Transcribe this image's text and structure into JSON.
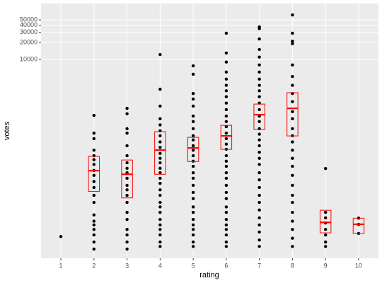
{
  "chart_data": {
    "type": "box",
    "x_label": "rating",
    "y_label": "votes",
    "categories": [
      "1",
      "2",
      "3",
      "4",
      "5",
      "6",
      "7",
      "8",
      "9",
      "10"
    ],
    "ylim": [
      3.1,
      97000
    ],
    "log_y": true,
    "grid": true,
    "yticks": [
      10000,
      20000,
      30000,
      40000,
      50000
    ],
    "box_color": "#ff0000",
    "point_color": "#000000",
    "boxes": {
      "q1": [
        null,
        47,
        36,
        94,
        158,
        259,
        578,
        447,
        8.7,
        8.5
      ],
      "median": [
        null,
        109,
        94,
        251,
        274,
        447,
        1060,
        1370,
        13.3,
        12.3
      ],
      "q3": [
        null,
        195,
        168,
        531,
        422,
        688,
        1630,
        2590,
        21.8,
        15.8
      ]
    },
    "points": [
      [
        7.5
      ],
      [
        1030,
        500,
        400,
        250,
        200,
        170,
        140,
        110,
        90,
        70,
        55,
        40,
        30,
        18,
        14,
        12,
        10,
        8,
        6,
        4.5
      ],
      [
        1370,
        1100,
        600,
        500,
        300,
        200,
        150,
        120,
        100,
        80,
        60,
        50,
        40,
        30,
        20,
        15,
        10,
        8,
        6,
        4.5
      ],
      [
        12200,
        2980,
        1500,
        900,
        700,
        550,
        450,
        350,
        280,
        220,
        180,
        150,
        120,
        100,
        80,
        65,
        50,
        40,
        30,
        25,
        20,
        15,
        12,
        10,
        8,
        6,
        5
      ],
      [
        7700,
        5480,
        2500,
        2000,
        1500,
        1000,
        800,
        600,
        450,
        380,
        300,
        250,
        200,
        160,
        130,
        100,
        80,
        60,
        45,
        35,
        25,
        20,
        15,
        12,
        10,
        8,
        6,
        5
      ],
      [
        29000,
        13000,
        9000,
        6000,
        4500,
        3500,
        2800,
        2200,
        1700,
        1300,
        1000,
        800,
        650,
        500,
        400,
        320,
        260,
        200,
        160,
        130,
        100,
        80,
        60,
        45,
        35,
        25,
        20,
        15,
        12,
        10,
        8,
        6,
        5
      ],
      [
        37500,
        35000,
        23000,
        15000,
        11000,
        8000,
        6000,
        4500,
        3500,
        2800,
        2200,
        1700,
        1300,
        1000,
        800,
        600,
        480,
        380,
        300,
        230,
        180,
        140,
        100,
        75,
        55,
        40,
        30,
        22,
        16,
        12,
        9,
        6.5,
        5
      ],
      [
        61000,
        29000,
        21000,
        19000,
        8000,
        5000,
        3500,
        2500,
        1800,
        1200,
        900,
        600,
        450,
        350,
        250,
        180,
        130,
        90,
        60,
        40,
        30,
        20,
        14,
        10,
        7,
        5
      ],
      [
        119,
        20,
        16,
        13,
        10,
        8,
        6,
        5
      ],
      [
        15.8,
        12.3,
        8.5
      ]
    ]
  }
}
